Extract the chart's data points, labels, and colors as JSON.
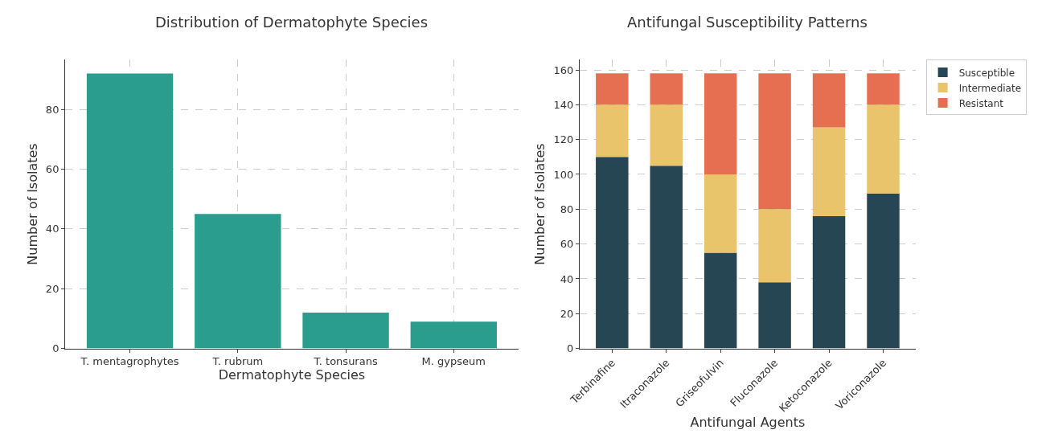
{
  "chart_data": [
    {
      "type": "bar",
      "title": "Distribution of Dermatophyte Species",
      "xlabel": "Dermatophyte Species",
      "ylabel": "Number of Isolates",
      "categories": [
        "T. mentagrophytes",
        "T. rubrum",
        "T. tonsurans",
        "M. gypseum"
      ],
      "values": [
        92,
        45,
        12,
        9
      ],
      "color": "#2a9d8f",
      "ylim": [
        0,
        96.6
      ],
      "yticks": [
        0,
        20,
        40,
        60,
        80
      ],
      "grid": true
    },
    {
      "type": "bar",
      "title": "Antifungal Susceptibility Patterns",
      "xlabel": "Antifungal Agents",
      "ylabel": "Number of Isolates",
      "categories": [
        "Terbinafine",
        "Itraconazole",
        "Griseofulvin",
        "Fluconazole",
        "Ketoconazole",
        "Voriconazole"
      ],
      "stacked": true,
      "series": [
        {
          "name": "Susceptible",
          "color": "#264653",
          "values": [
            110,
            105,
            55,
            38,
            76,
            89
          ]
        },
        {
          "name": "Intermediate",
          "color": "#e9c46a",
          "values": [
            30,
            35,
            45,
            42,
            51,
            51
          ]
        },
        {
          "name": "Resistant",
          "color": "#e76f51",
          "values": [
            18,
            18,
            58,
            78,
            31,
            18
          ]
        }
      ],
      "ylim": [
        0,
        165.8
      ],
      "yticks": [
        0,
        20,
        40,
        60,
        80,
        100,
        120,
        140,
        160
      ],
      "grid": true,
      "legend": "top right"
    }
  ]
}
